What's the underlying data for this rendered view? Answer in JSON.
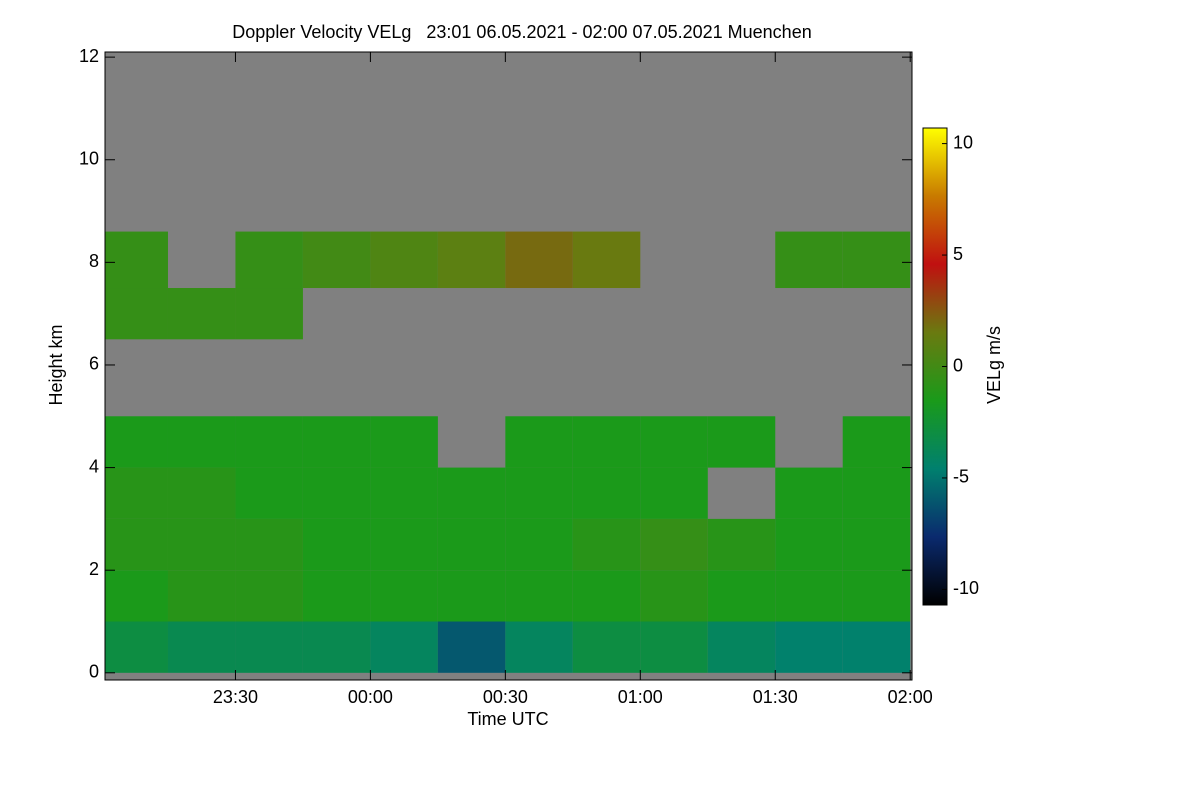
{
  "chart_data": {
    "type": "heatmap",
    "title": "Doppler Velocity VELg   23:01 06.05.2021 - 02:00 07.05.2021 Muenchen",
    "xlabel": "Time UTC",
    "ylabel": "Height km",
    "colorbar_label": "VELg m/s",
    "x_bins": [
      1381,
      1395,
      1410,
      1425,
      1440,
      1455,
      1470,
      1485,
      1500,
      1515,
      1530,
      1545,
      1560
    ],
    "y_bins": [
      0,
      1,
      2,
      3,
      4,
      5,
      6.5,
      7.5,
      8.6,
      12
    ],
    "values": [
      [
        -3,
        -3.5,
        -3.5,
        -3.5,
        -4,
        -6,
        -4,
        -3,
        -3,
        -4,
        -4.5,
        -4.5
      ],
      [
        -1.5,
        -1,
        -1,
        -1.5,
        -1.5,
        -1.5,
        -1.5,
        -1.5,
        -1,
        -1.5,
        -1.5,
        -1.5
      ],
      [
        -1,
        -1,
        -1,
        -1.5,
        -1.5,
        -1.5,
        -1.5,
        -1,
        -0.5,
        -1,
        -1.5,
        -1.5
      ],
      [
        -1,
        -1,
        -1.5,
        -1.5,
        -1.5,
        -1.5,
        -1.5,
        -1.5,
        -1.5,
        null,
        -1.5,
        -1.5
      ],
      [
        -1.5,
        -1.5,
        -1.5,
        -1.5,
        -1.5,
        null,
        -1.5,
        -1.5,
        -1.5,
        -1.5,
        null,
        -1.5
      ],
      [
        null,
        null,
        null,
        null,
        null,
        null,
        null,
        null,
        null,
        null,
        null,
        null
      ],
      [
        -0.5,
        -0.5,
        -0.5,
        null,
        null,
        null,
        null,
        null,
        null,
        null,
        null,
        null
      ],
      [
        -0.5,
        null,
        -0.5,
        0,
        0.5,
        1,
        2,
        1.5,
        null,
        null,
        -0.5,
        -0.5
      ],
      [
        null,
        null,
        null,
        null,
        null,
        null,
        null,
        null,
        null,
        null,
        null,
        null
      ]
    ],
    "xlim": [
      1381,
      1560.4
    ],
    "ylim": [
      -0.14,
      12.1
    ],
    "xticks": [
      {
        "value": 1410,
        "label": "23:30"
      },
      {
        "value": 1440,
        "label": "00:00"
      },
      {
        "value": 1470,
        "label": "00:30"
      },
      {
        "value": 1500,
        "label": "01:00"
      },
      {
        "value": 1530,
        "label": "01:30"
      },
      {
        "value": 1560,
        "label": "02:00"
      }
    ],
    "yticks": [
      0,
      2,
      4,
      6,
      8,
      10,
      12
    ],
    "clim": [
      -10.7,
      10.7
    ],
    "cticks": [
      -10,
      -5,
      0,
      5,
      10
    ],
    "colormap": [
      "#000000",
      "#0a2a6e",
      "#00806e",
      "#1a9a1a",
      "#6a7a10",
      "#c01010",
      "#c87a00",
      "#ffff00"
    ],
    "background": "#808080"
  }
}
